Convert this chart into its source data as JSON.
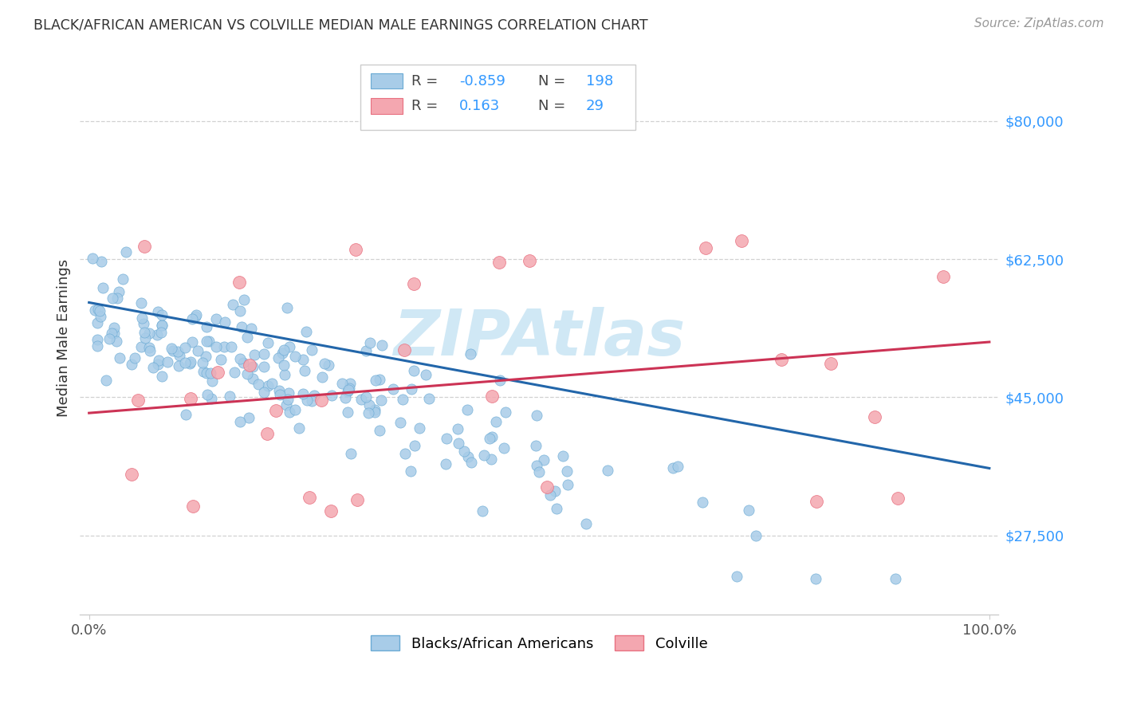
{
  "title": "BLACK/AFRICAN AMERICAN VS COLVILLE MEDIAN MALE EARNINGS CORRELATION CHART",
  "source": "Source: ZipAtlas.com",
  "ylabel": "Median Male Earnings",
  "xlim": [
    -0.01,
    1.01
  ],
  "ylim": [
    17500,
    87500
  ],
  "yticks": [
    27500,
    45000,
    62500,
    80000
  ],
  "ytick_labels": [
    "$27,500",
    "$45,000",
    "$62,500",
    "$80,000"
  ],
  "xtick_positions": [
    0,
    1
  ],
  "xtick_labels": [
    "0.0%",
    "100.0%"
  ],
  "legend_labels": [
    "Blacks/African Americans",
    "Colville"
  ],
  "legend_R_blue": "-0.859",
  "legend_N_blue": "198",
  "legend_R_pink": "0.163",
  "legend_N_pink": "29",
  "blue_color": "#a8cce8",
  "blue_edge_color": "#6aaad4",
  "pink_color": "#f4a7b0",
  "pink_edge_color": "#e87080",
  "blue_line_color": "#2266aa",
  "pink_line_color": "#cc3355",
  "tick_label_color": "#3399ff",
  "background_color": "#ffffff",
  "grid_color": "#cccccc",
  "watermark": "ZIPAtlas",
  "watermark_color": "#d0e8f5",
  "title_color": "#333333",
  "source_color": "#999999",
  "ylabel_color": "#333333"
}
